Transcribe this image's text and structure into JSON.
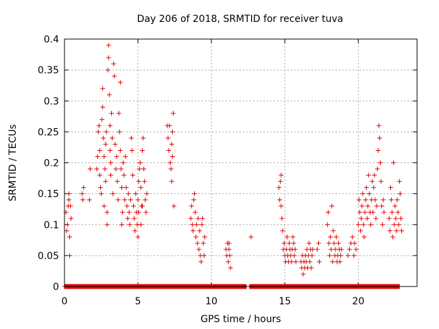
{
  "chart_data": {
    "type": "scatter",
    "title": "Day 206 of 2018, SRMTID for receiver tuva",
    "xlabel": "GPS time / hours",
    "ylabel": "SRMTID / TECUs",
    "xlim": [
      0,
      24
    ],
    "ylim": [
      0,
      0.4
    ],
    "xticks": [
      0,
      5,
      10,
      15,
      20
    ],
    "xtick_labels": [
      "0",
      "5",
      "10",
      "15",
      "20"
    ],
    "yticks": [
      0,
      0.05,
      0.1,
      0.15,
      0.2,
      0.25,
      0.3,
      0.35,
      0.4
    ],
    "ytick_labels": [
      "0",
      "0.05",
      "0.1",
      "0.15",
      "0.2",
      "0.25",
      "0.3",
      "0.35",
      "0.4"
    ],
    "grid": true,
    "marker": "plus",
    "color": "#e00000",
    "series": [
      {
        "name": "SRMTID",
        "points": [
          [
            0.1,
            0.12
          ],
          [
            0.15,
            0.09
          ],
          [
            0.2,
            0.1
          ],
          [
            0.25,
            0.13
          ],
          [
            0.3,
            0.15
          ],
          [
            0.3,
            0.14
          ],
          [
            0.35,
            0.08
          ],
          [
            0.35,
            0.05
          ],
          [
            0.4,
            0.13
          ],
          [
            0.45,
            0.11
          ],
          [
            1.2,
            0.15
          ],
          [
            1.25,
            0.14
          ],
          [
            1.3,
            0.16
          ],
          [
            1.7,
            0.14
          ],
          [
            1.75,
            0.19
          ],
          [
            2.2,
            0.19
          ],
          [
            2.25,
            0.21
          ],
          [
            2.3,
            0.25
          ],
          [
            2.35,
            0.26
          ],
          [
            2.4,
            0.22
          ],
          [
            2.4,
            0.18
          ],
          [
            2.45,
            0.16
          ],
          [
            2.5,
            0.15
          ],
          [
            2.55,
            0.27
          ],
          [
            2.6,
            0.29
          ],
          [
            2.6,
            0.32
          ],
          [
            2.65,
            0.24
          ],
          [
            2.7,
            0.21
          ],
          [
            2.7,
            0.13
          ],
          [
            2.75,
            0.19
          ],
          [
            2.8,
            0.23
          ],
          [
            2.8,
            0.17
          ],
          [
            2.85,
            0.25
          ],
          [
            2.9,
            0.12
          ],
          [
            2.9,
            0.1
          ],
          [
            2.95,
            0.35
          ],
          [
            3.0,
            0.37
          ],
          [
            3.0,
            0.39
          ],
          [
            3.05,
            0.31
          ],
          [
            3.1,
            0.26
          ],
          [
            3.1,
            0.22
          ],
          [
            3.15,
            0.2
          ],
          [
            3.15,
            0.18
          ],
          [
            3.2,
            0.28
          ],
          [
            3.25,
            0.24
          ],
          [
            3.3,
            0.15
          ],
          [
            3.35,
            0.36
          ],
          [
            3.4,
            0.34
          ],
          [
            3.45,
            0.23
          ],
          [
            3.5,
            0.19
          ],
          [
            3.55,
            0.21
          ],
          [
            3.6,
            0.17
          ],
          [
            3.65,
            0.14
          ],
          [
            3.7,
            0.28
          ],
          [
            3.75,
            0.25
          ],
          [
            3.8,
            0.22
          ],
          [
            3.8,
            0.33
          ],
          [
            3.85,
            0.19
          ],
          [
            3.9,
            0.16
          ],
          [
            3.9,
            0.1
          ],
          [
            3.95,
            0.12
          ],
          [
            4.0,
            0.2
          ],
          [
            4.05,
            0.18
          ],
          [
            4.1,
            0.14
          ],
          [
            4.15,
            0.21
          ],
          [
            4.2,
            0.16
          ],
          [
            4.25,
            0.13
          ],
          [
            4.3,
            0.11
          ],
          [
            4.35,
            0.15
          ],
          [
            4.4,
            0.12
          ],
          [
            4.45,
            0.1
          ],
          [
            4.5,
            0.14
          ],
          [
            4.55,
            0.24
          ],
          [
            4.6,
            0.22
          ],
          [
            4.65,
            0.18
          ],
          [
            4.7,
            0.13
          ],
          [
            4.75,
            0.11
          ],
          [
            4.8,
            0.09
          ],
          [
            4.85,
            0.15
          ],
          [
            4.9,
            0.12
          ],
          [
            4.95,
            0.1
          ],
          [
            5.0,
            0.08
          ],
          [
            5.0,
            0.14
          ],
          [
            5.05,
            0.17
          ],
          [
            5.1,
            0.19
          ],
          [
            5.15,
            0.2
          ],
          [
            5.2,
            0.16
          ],
          [
            5.25,
            0.13
          ],
          [
            5.3,
            0.22
          ],
          [
            5.35,
            0.24
          ],
          [
            5.4,
            0.19
          ],
          [
            5.45,
            0.17
          ],
          [
            5.5,
            0.14
          ],
          [
            5.55,
            0.12
          ],
          [
            5.6,
            0.15
          ],
          [
            4.95,
            0.0
          ],
          [
            5.05,
            0.12
          ],
          [
            5.2,
            0.1
          ],
          [
            5.3,
            0.13
          ],
          [
            7.0,
            0.26
          ],
          [
            7.05,
            0.24
          ],
          [
            7.1,
            0.22
          ],
          [
            7.15,
            0.26
          ],
          [
            7.2,
            0.2
          ],
          [
            7.25,
            0.19
          ],
          [
            7.3,
            0.23
          ],
          [
            7.35,
            0.21
          ],
          [
            7.4,
            0.28
          ],
          [
            7.45,
            0.13
          ],
          [
            7.3,
            0.17
          ],
          [
            7.35,
            0.25
          ],
          [
            8.6,
            0.11
          ],
          [
            8.65,
            0.13
          ],
          [
            8.7,
            0.1
          ],
          [
            8.75,
            0.09
          ],
          [
            8.8,
            0.14
          ],
          [
            8.85,
            0.15
          ],
          [
            8.9,
            0.12
          ],
          [
            8.95,
            0.08
          ],
          [
            9.0,
            0.1
          ],
          [
            9.05,
            0.07
          ],
          [
            9.1,
            0.11
          ],
          [
            9.15,
            0.06
          ],
          [
            9.2,
            0.09
          ],
          [
            9.25,
            0.05
          ],
          [
            9.3,
            0.04
          ],
          [
            9.35,
            0.1
          ],
          [
            9.4,
            0.11
          ],
          [
            9.45,
            0.07
          ],
          [
            9.5,
            0.05
          ],
          [
            9.55,
            0.08
          ],
          [
            11.0,
            0.06
          ],
          [
            11.05,
            0.05
          ],
          [
            11.1,
            0.07
          ],
          [
            11.15,
            0.04
          ],
          [
            11.2,
            0.06
          ],
          [
            11.25,
            0.05
          ],
          [
            11.3,
            0.03
          ],
          [
            11.2,
            0.07
          ],
          [
            12.7,
            0.08
          ],
          [
            14.6,
            0.16
          ],
          [
            14.65,
            0.14
          ],
          [
            14.7,
            0.17
          ],
          [
            14.75,
            0.18
          ],
          [
            14.75,
            0.13
          ],
          [
            14.8,
            0.11
          ],
          [
            14.85,
            0.09
          ],
          [
            14.9,
            0.06
          ],
          [
            14.95,
            0.07
          ],
          [
            15.0,
            0.05
          ],
          [
            15.05,
            0.04
          ],
          [
            15.1,
            0.06
          ],
          [
            15.15,
            0.08
          ],
          [
            15.2,
            0.05
          ],
          [
            15.25,
            0.04
          ],
          [
            15.3,
            0.07
          ],
          [
            15.35,
            0.06
          ],
          [
            15.4,
            0.05
          ],
          [
            15.45,
            0.04
          ],
          [
            15.5,
            0.06
          ],
          [
            15.55,
            0.08
          ],
          [
            15.6,
            0.07
          ],
          [
            15.65,
            0.05
          ],
          [
            15.7,
            0.06
          ],
          [
            15.75,
            0.04
          ],
          [
            16.1,
            0.04
          ],
          [
            16.15,
            0.03
          ],
          [
            16.2,
            0.05
          ],
          [
            16.25,
            0.02
          ],
          [
            16.3,
            0.04
          ],
          [
            16.35,
            0.03
          ],
          [
            16.4,
            0.05
          ],
          [
            16.45,
            0.04
          ],
          [
            16.5,
            0.06
          ],
          [
            16.55,
            0.03
          ],
          [
            16.6,
            0.05
          ],
          [
            16.65,
            0.07
          ],
          [
            16.7,
            0.04
          ],
          [
            16.75,
            0.06
          ],
          [
            16.8,
            0.03
          ],
          [
            16.85,
            0.05
          ],
          [
            16.9,
            0.06
          ],
          [
            17.2,
            0.06
          ],
          [
            17.3,
            0.07
          ],
          [
            17.35,
            0.04
          ],
          [
            17.9,
            0.1
          ],
          [
            17.95,
            0.12
          ],
          [
            18.0,
            0.07
          ],
          [
            18.05,
            0.05
          ],
          [
            18.1,
            0.08
          ],
          [
            18.15,
            0.06
          ],
          [
            18.2,
            0.13
          ],
          [
            18.25,
            0.04
          ],
          [
            18.3,
            0.09
          ],
          [
            18.35,
            0.07
          ],
          [
            18.4,
            0.05
          ],
          [
            18.45,
            0.06
          ],
          [
            18.5,
            0.08
          ],
          [
            18.55,
            0.04
          ],
          [
            18.6,
            0.05
          ],
          [
            18.65,
            0.07
          ],
          [
            18.7,
            0.06
          ],
          [
            18.75,
            0.04
          ],
          [
            18.8,
            0.05
          ],
          [
            18.85,
            0.06
          ],
          [
            19.3,
            0.05
          ],
          [
            19.4,
            0.06
          ],
          [
            19.5,
            0.07
          ],
          [
            19.6,
            0.08
          ],
          [
            19.7,
            0.05
          ],
          [
            19.75,
            0.07
          ],
          [
            19.85,
            0.06
          ],
          [
            20.0,
            0.1
          ],
          [
            20.05,
            0.14
          ],
          [
            20.1,
            0.12
          ],
          [
            20.15,
            0.09
          ],
          [
            20.2,
            0.11
          ],
          [
            20.25,
            0.13
          ],
          [
            20.3,
            0.15
          ],
          [
            20.35,
            0.1
          ],
          [
            20.4,
            0.08
          ],
          [
            20.45,
            0.12
          ],
          [
            20.5,
            0.14
          ],
          [
            20.55,
            0.16
          ],
          [
            20.6,
            0.11
          ],
          [
            20.65,
            0.13
          ],
          [
            20.7,
            0.18
          ],
          [
            20.75,
            0.15
          ],
          [
            20.8,
            0.12
          ],
          [
            20.85,
            0.1
          ],
          [
            20.9,
            0.14
          ],
          [
            20.95,
            0.17
          ],
          [
            21.0,
            0.12
          ],
          [
            21.05,
            0.16
          ],
          [
            21.1,
            0.18
          ],
          [
            21.15,
            0.14
          ],
          [
            21.2,
            0.11
          ],
          [
            21.25,
            0.13
          ],
          [
            21.3,
            0.19
          ],
          [
            21.35,
            0.22
          ],
          [
            21.4,
            0.26
          ],
          [
            21.45,
            0.24
          ],
          [
            21.5,
            0.2
          ],
          [
            21.55,
            0.17
          ],
          [
            21.6,
            0.13
          ],
          [
            21.65,
            0.1
          ],
          [
            21.7,
            0.14
          ],
          [
            21.75,
            0.12
          ],
          [
            22.1,
            0.11
          ],
          [
            22.15,
            0.09
          ],
          [
            22.2,
            0.16
          ],
          [
            22.25,
            0.14
          ],
          [
            22.3,
            0.12
          ],
          [
            22.35,
            0.08
          ],
          [
            22.4,
            0.2
          ],
          [
            22.45,
            0.1
          ],
          [
            22.5,
            0.13
          ],
          [
            22.55,
            0.11
          ],
          [
            22.6,
            0.09
          ],
          [
            22.65,
            0.14
          ],
          [
            22.7,
            0.12
          ],
          [
            22.75,
            0.1
          ],
          [
            22.8,
            0.17
          ],
          [
            22.85,
            0.15
          ],
          [
            22.9,
            0.11
          ],
          [
            22.95,
            0.09
          ]
        ],
        "zero_band": {
          "from": 0.0,
          "to": 22.8,
          "value": 0,
          "gaps": [
            [
              12.4,
              12.6
            ]
          ]
        }
      }
    ]
  }
}
